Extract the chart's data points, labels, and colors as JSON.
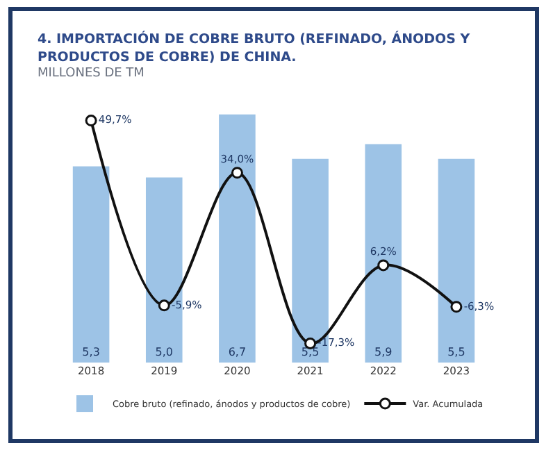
{
  "chart_data": {
    "type": "bar",
    "title": "4. IMPORTACIÓN DE COBRE BRUTO (REFINADO, ÁNODOS Y PRODUCTOS DE COBRE) DE CHINA.",
    "subtitle": "MILLONES DE TM",
    "categories": [
      "2018",
      "2019",
      "2020",
      "2021",
      "2022",
      "2023"
    ],
    "series": [
      {
        "name": "Cobre bruto (refinado, ánodos y productos de cobre)",
        "color": "#9dc3e6",
        "values": [
          5.3,
          5.0,
          6.7,
          5.5,
          5.9,
          5.5
        ],
        "value_labels": [
          "5,3",
          "5,0",
          "6,7",
          "5,5",
          "5,9",
          "5,5"
        ]
      },
      {
        "name": "Var. Acumulada",
        "type": "line",
        "axis": "y2",
        "color": "#111111",
        "marker": "circle",
        "values": [
          49.7,
          -5.9,
          34.0,
          -17.3,
          6.2,
          -6.3
        ],
        "value_labels": [
          "49,7%",
          "-5,9%",
          "34,0%",
          "-17,3%",
          "6,2%",
          "-6,3%"
        ]
      }
    ],
    "grid": false,
    "legend": "bottom"
  }
}
